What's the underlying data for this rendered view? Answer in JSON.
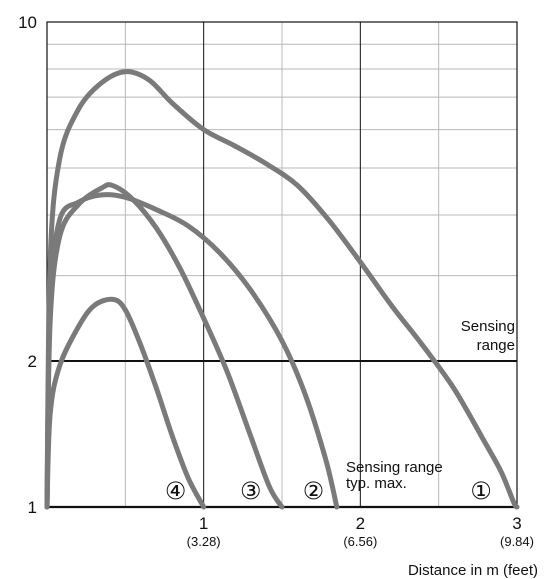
{
  "chart_data": {
    "type": "line",
    "title": "",
    "xlabel": "Distance in m (feet)",
    "ylabel": "",
    "x_scale": "linear",
    "y_scale": "log",
    "xlim": [
      0,
      3
    ],
    "ylim": [
      1,
      10
    ],
    "grid": true,
    "legend": "none",
    "x_ticks": [
      {
        "value": 1,
        "label": "1",
        "sublabel": "(3.28)"
      },
      {
        "value": 2,
        "label": "2",
        "sublabel": "(6.56)"
      },
      {
        "value": 3,
        "label": "3",
        "sublabel": "(9.84)"
      }
    ],
    "y_ticks": [
      {
        "value": 1,
        "label": "1"
      },
      {
        "value": 2,
        "label": "2"
      },
      {
        "value": 10,
        "label": "10"
      }
    ],
    "reference_line": {
      "y": 2,
      "label_line1": "Sensing",
      "label_line2": "range"
    },
    "annotation": {
      "line1": "Sensing range",
      "line2": "typ. max."
    },
    "series": [
      {
        "label": "①",
        "color": "#7a7a7a",
        "points": [
          [
            0,
            1
          ],
          [
            0.02,
            3.2
          ],
          [
            0.08,
            5.2
          ],
          [
            0.2,
            6.6
          ],
          [
            0.35,
            7.5
          ],
          [
            0.5,
            7.9
          ],
          [
            0.65,
            7.6
          ],
          [
            0.8,
            6.8
          ],
          [
            1.0,
            6.0
          ],
          [
            1.2,
            5.55
          ],
          [
            1.4,
            5.1
          ],
          [
            1.6,
            4.6
          ],
          [
            1.8,
            3.9
          ],
          [
            2.0,
            3.2
          ],
          [
            2.2,
            2.6
          ],
          [
            2.4,
            2.15
          ],
          [
            2.6,
            1.75
          ],
          [
            2.8,
            1.35
          ],
          [
            2.9,
            1.18
          ],
          [
            2.98,
            1.02
          ],
          [
            3.0,
            1.0
          ]
        ]
      },
      {
        "label": "②",
        "color": "#7a7a7a",
        "points": [
          [
            0,
            1
          ],
          [
            0.02,
            2.6
          ],
          [
            0.08,
            3.9
          ],
          [
            0.2,
            4.25
          ],
          [
            0.35,
            4.4
          ],
          [
            0.5,
            4.35
          ],
          [
            0.7,
            4.1
          ],
          [
            0.9,
            3.8
          ],
          [
            1.1,
            3.35
          ],
          [
            1.3,
            2.8
          ],
          [
            1.5,
            2.2
          ],
          [
            1.65,
            1.7
          ],
          [
            1.78,
            1.25
          ],
          [
            1.85,
            1.0
          ]
        ]
      },
      {
        "label": "③",
        "color": "#7a7a7a",
        "points": [
          [
            0,
            1
          ],
          [
            0.02,
            2.4
          ],
          [
            0.08,
            3.6
          ],
          [
            0.2,
            4.2
          ],
          [
            0.35,
            4.55
          ],
          [
            0.42,
            4.6
          ],
          [
            0.55,
            4.3
          ],
          [
            0.7,
            3.75
          ],
          [
            0.85,
            3.1
          ],
          [
            1.0,
            2.45
          ],
          [
            1.15,
            1.9
          ],
          [
            1.3,
            1.4
          ],
          [
            1.42,
            1.1
          ],
          [
            1.5,
            1.0
          ]
        ]
      },
      {
        "label": "④",
        "color": "#7a7a7a",
        "points": [
          [
            0,
            1
          ],
          [
            0.02,
            1.55
          ],
          [
            0.08,
            1.95
          ],
          [
            0.2,
            2.35
          ],
          [
            0.3,
            2.6
          ],
          [
            0.42,
            2.68
          ],
          [
            0.5,
            2.55
          ],
          [
            0.6,
            2.15
          ],
          [
            0.7,
            1.75
          ],
          [
            0.8,
            1.4
          ],
          [
            0.9,
            1.15
          ],
          [
            1.0,
            1.0
          ]
        ]
      }
    ],
    "curve_labels": [
      {
        "text": "④",
        "x": 0.82
      },
      {
        "text": "③",
        "x": 1.3
      },
      {
        "text": "②",
        "x": 1.7
      },
      {
        "text": "①",
        "x": 2.77
      }
    ],
    "colors": {
      "curve": "#7a7a7a",
      "grid_major": "#111111",
      "grid_minor": "#b8b8b8",
      "reference": "#111111"
    }
  }
}
